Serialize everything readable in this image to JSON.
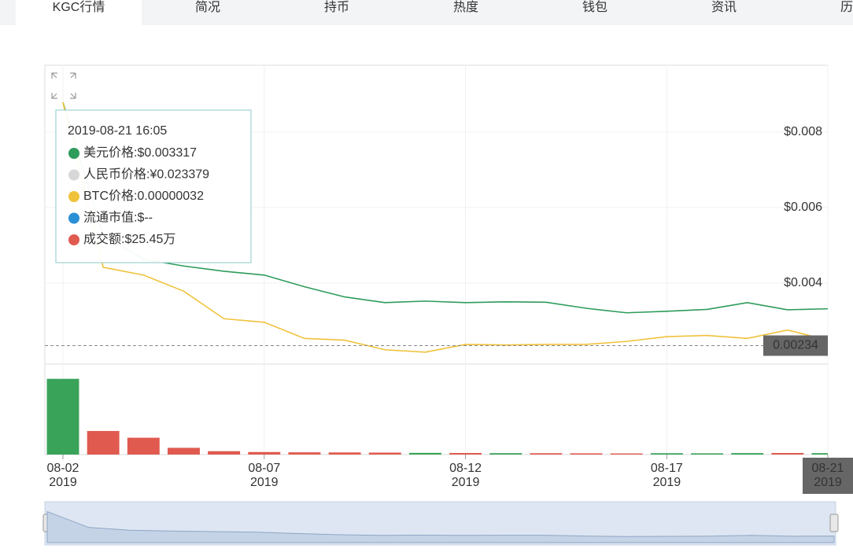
{
  "tabs": [
    "KGC行情",
    "简况",
    "持币",
    "热度",
    "钱包",
    "资讯",
    "历史"
  ],
  "chart_data": {
    "type": "line",
    "categories": [
      "08-02",
      "08-03",
      "08-04",
      "08-05",
      "08-06",
      "08-07",
      "08-08",
      "08-09",
      "08-10",
      "08-11",
      "08-12",
      "08-13",
      "08-14",
      "08-15",
      "08-16",
      "08-17",
      "08-18",
      "08-19",
      "08-20",
      "08-21"
    ],
    "series": [
      {
        "name": "美元价格",
        "color": "#2e9c5b",
        "values": [
          0.00879,
          0.00525,
          0.00463,
          0.00445,
          0.00431,
          0.00421,
          0.0039,
          0.00363,
          0.00348,
          0.00352,
          0.00348,
          0.0035,
          0.00349,
          0.00333,
          0.00321,
          0.00325,
          0.0033,
          0.00348,
          0.00329,
          0.003317
        ]
      },
      {
        "name": "BTC价格",
        "color": "#f0c23c",
        "axis": "y2",
        "values": [
          7.18e-07,
          4.42e-07,
          4.29e-07,
          4.02e-07,
          3.56e-07,
          3.5e-07,
          3.23e-07,
          3.2e-07,
          3.04e-07,
          3e-07,
          3.13e-07,
          3.12e-07,
          3.13e-07,
          3.13e-07,
          3.18e-07,
          3.26e-07,
          3.28e-07,
          3.23e-07,
          3.37e-07,
          3.2e-07
        ]
      }
    ],
    "volume": {
      "values": [
        1350,
        420,
        300,
        120,
        60,
        45,
        40,
        38,
        35,
        30,
        28,
        25,
        24,
        22,
        20,
        24,
        22,
        26,
        28,
        25.45
      ],
      "up_color": "#3aa35a",
      "down_color": "#e05a4f",
      "vlim": [
        0,
        1500
      ]
    },
    "ylim": [
      0.00185,
      0.00977
    ],
    "yticks": [
      {
        "value": 0.004,
        "label": "$0.004"
      },
      {
        "value": 0.006,
        "label": "$0.006"
      },
      {
        "value": 0.008,
        "label": "$0.008"
      }
    ],
    "y2lim": [
      2.8e-07,
      7.8e-07
    ],
    "price_marker": 0.00234,
    "xticks": [
      "08-02",
      "08-07",
      "08-12",
      "08-17",
      "08-21"
    ],
    "xtick_year": "2019",
    "grid": true,
    "tooltip": {
      "time": "2019-08-21 16:05",
      "items": [
        {
          "label": "美元价格:$0.003317",
          "color": "#2e9c5b"
        },
        {
          "label": "人民币价格:¥0.023379",
          "color": "#d8d8d8"
        },
        {
          "label": "BTC价格:0.00000032",
          "color": "#f0c23c"
        },
        {
          "label": "流通市值:$--",
          "color": "#2b8fd6"
        },
        {
          "label": "成交额:$25.45万",
          "color": "#e05a4f"
        }
      ]
    }
  }
}
